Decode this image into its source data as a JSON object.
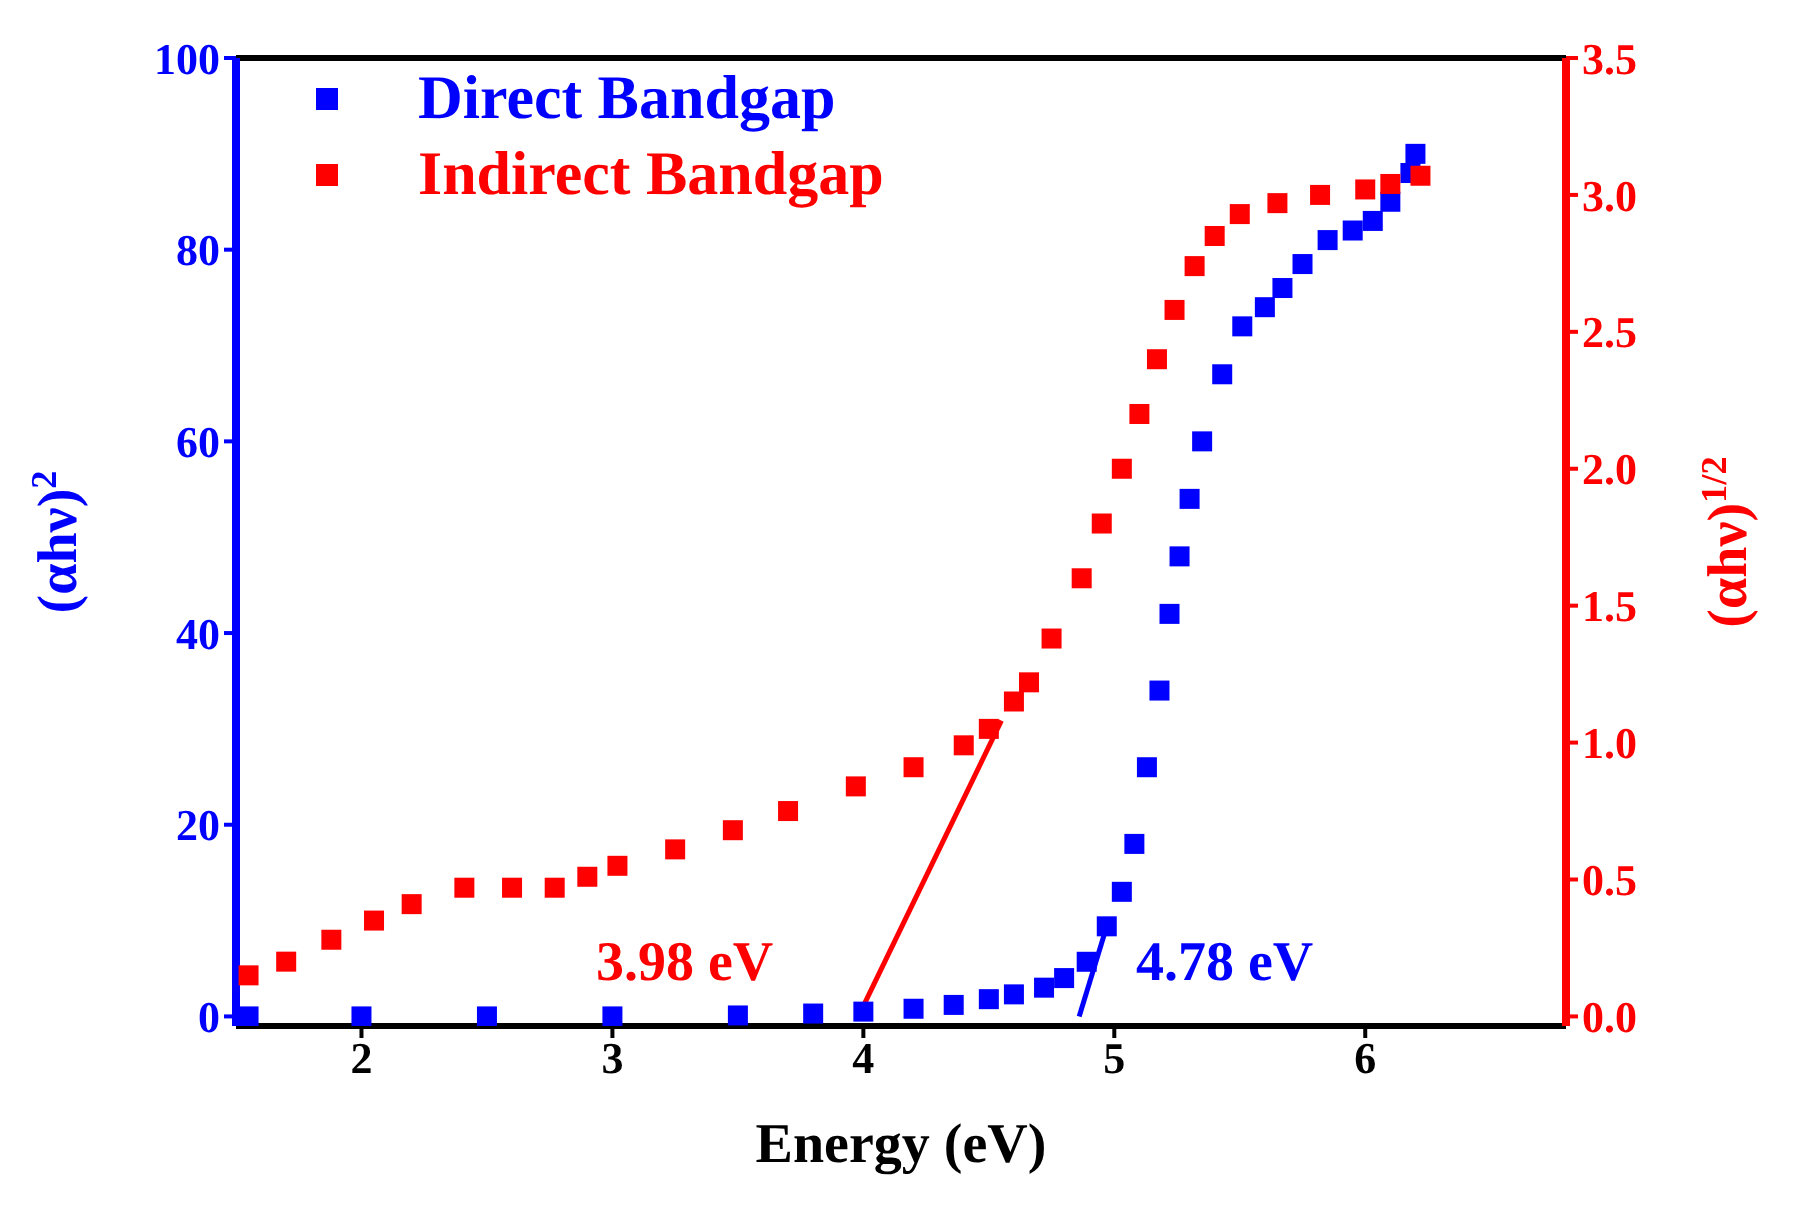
{
  "chart_data": {
    "type": "scatter",
    "xlabel": "Energy (eV)",
    "ylabel": "(αhν)$^{2}$",
    "y2label": "(αhν)$^{1/2}$",
    "xlim": [
      1.5,
      6.8
    ],
    "xticks": [
      2,
      3,
      4,
      5,
      6
    ],
    "ylim": [
      -1,
      100
    ],
    "yticks": [
      0,
      20,
      40,
      60,
      80,
      100
    ],
    "y2lim": [
      -0.035,
      3.5
    ],
    "y2ticks": [
      {
        "value": 0,
        "label": "0.0"
      },
      0.5,
      {
        "value": 1,
        "label": "1.0"
      },
      1.5,
      {
        "value": 2,
        "label": "2.0"
      },
      2.5,
      {
        "value": 3,
        "label": "3.0"
      },
      3.5
    ],
    "legend": "top left",
    "annotations": [
      "3.98 eV",
      "4.78 eV"
    ],
    "series": [
      {
        "name": "Direct Bandgap",
        "marker": "square",
        "axis": "y",
        "color": "#0000ff",
        "x": [
          1.55,
          2,
          2.5,
          3,
          3.5,
          3.8,
          4.0,
          4.2,
          4.36,
          4.5,
          4.6,
          4.72,
          4.8,
          4.89,
          4.97,
          5.03,
          5.08,
          5.13,
          5.18,
          5.22,
          5.26,
          5.3,
          5.35,
          5.43,
          5.51,
          5.6,
          5.67,
          5.75,
          5.85,
          5.95,
          6.03,
          6.1,
          6.18,
          6.2
        ],
        "values": [
          0,
          0,
          0,
          0,
          0.1,
          0.3,
          0.5,
          0.8,
          1.2,
          1.8,
          2.3,
          3,
          4,
          5.7,
          9.4,
          13,
          18,
          26,
          34,
          42,
          48,
          54,
          60,
          67,
          72,
          74,
          76,
          78.5,
          81,
          82,
          83,
          85,
          88,
          90
        ]
      },
      {
        "name": "Indirect Bandgap",
        "marker": "square",
        "axis": "y2",
        "color": "#ff0000",
        "x": [
          1.55,
          1.7,
          1.88,
          2.05,
          2.2,
          2.41,
          2.6,
          2.77,
          2.9,
          3.02,
          3.25,
          3.48,
          3.7,
          3.97,
          4.2,
          4.4,
          4.5,
          4.6,
          4.66,
          4.75,
          4.87,
          4.95,
          5.03,
          5.1,
          5.17,
          5.24,
          5.32,
          5.4,
          5.5,
          5.65,
          5.82,
          6.0,
          6.1,
          6.22
        ],
        "values": [
          0.15,
          0.2,
          0.28,
          0.35,
          0.41,
          0.47,
          0.47,
          0.47,
          0.51,
          0.55,
          0.61,
          0.68,
          0.75,
          0.84,
          0.91,
          0.99,
          1.05,
          1.15,
          1.22,
          1.38,
          1.6,
          1.8,
          2.0,
          2.2,
          2.4,
          2.58,
          2.74,
          2.85,
          2.93,
          2.97,
          3.0,
          3.02,
          3.04,
          3.07
        ]
      },
      {
        "type": "line",
        "marker": "none",
        "axis": "y2",
        "color": "#ff0000",
        "x": [
          3.98,
          4.55
        ],
        "values": [
          0,
          1.08
        ]
      },
      {
        "type": "line",
        "marker": "none",
        "axis": "y",
        "color": "#0000ff",
        "x": [
          4.86,
          4.97
        ],
        "values": [
          0,
          9.4
        ]
      }
    ]
  }
}
